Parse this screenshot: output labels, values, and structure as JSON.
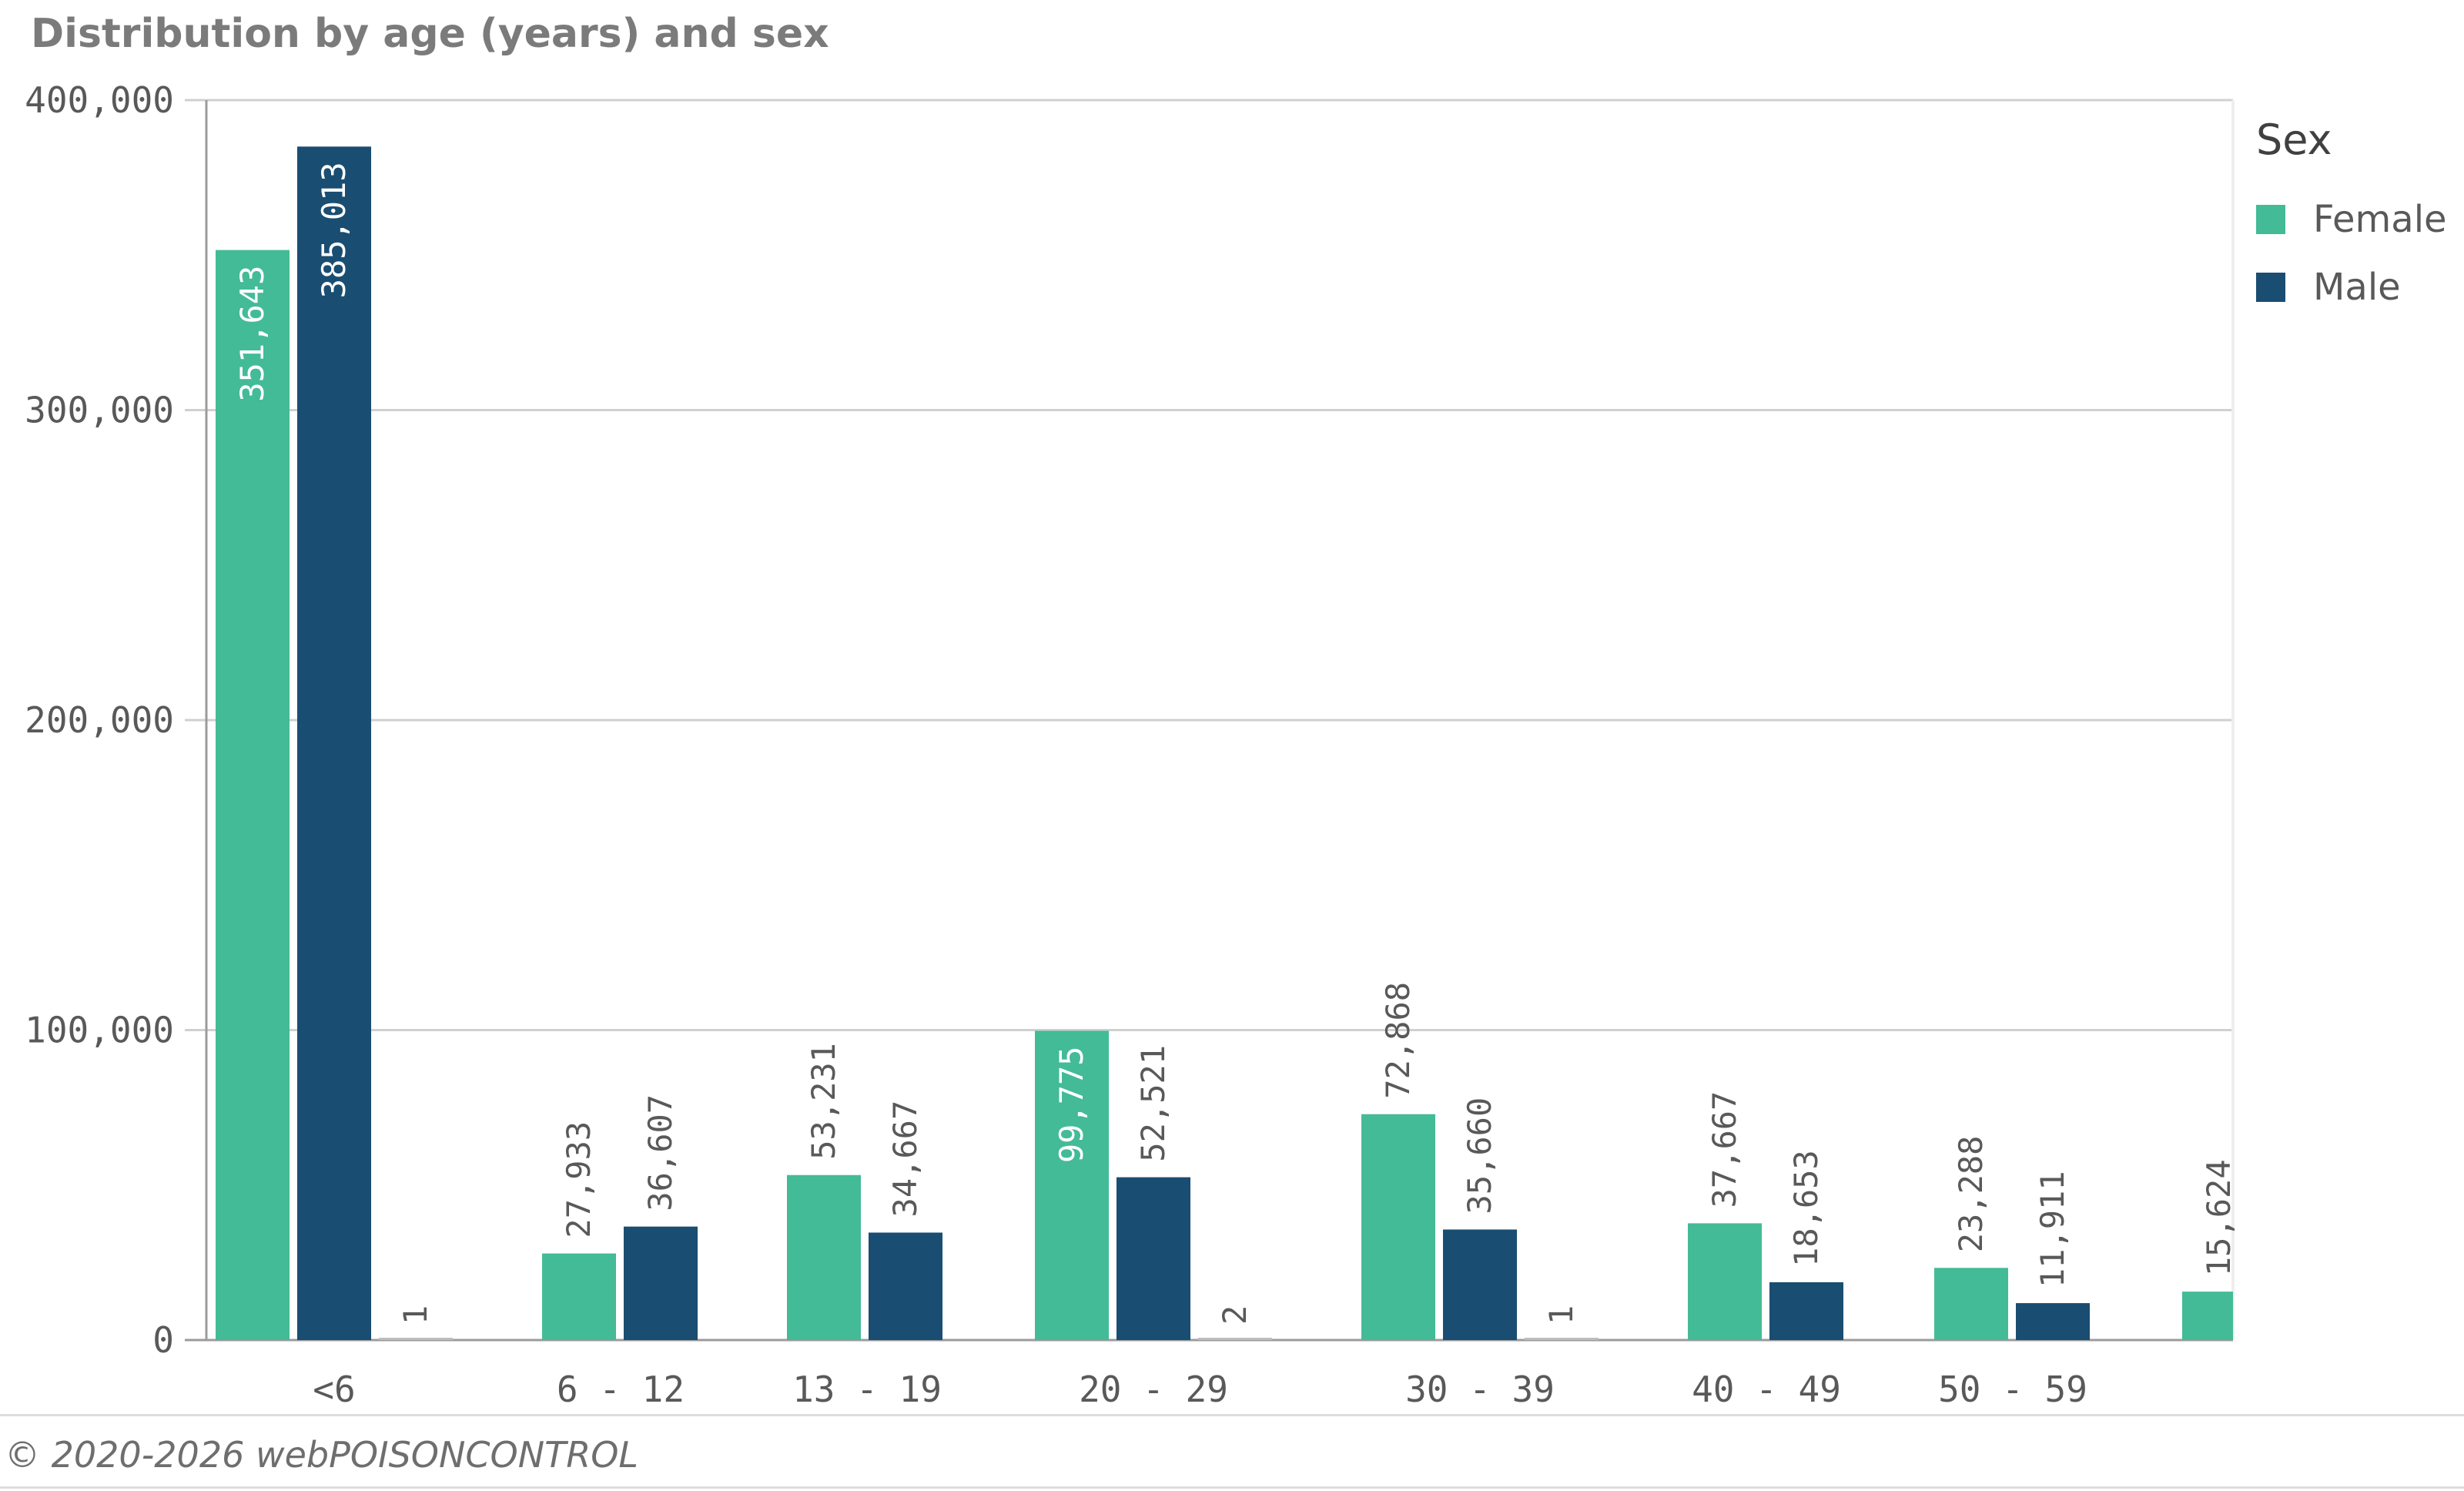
{
  "chart_data": {
    "type": "bar",
    "title": "Distribution by age (years) and sex",
    "xlabel": "",
    "ylabel": "",
    "ylim": [
      0,
      400000
    ],
    "yticks": [
      "0",
      "100,000",
      "200,000",
      "300,000",
      "400,000"
    ],
    "categories": [
      "<6",
      "6 - 12",
      "13 - 19",
      "20 - 29",
      "30 - 39",
      "40 - 49",
      "50 - 59",
      ""
    ],
    "legend_title": "Sex",
    "legend_position": "right",
    "grid": true,
    "series": [
      {
        "name": "Female",
        "color": "#43bb96",
        "values": [
          351643,
          27933,
          53231,
          99775,
          72868,
          37667,
          23288,
          15624
        ],
        "labels": [
          "351,643",
          "27,933",
          "53,231",
          "99,775",
          "72,868",
          "37,667",
          "23,288",
          "15,624"
        ]
      },
      {
        "name": "Male",
        "color": "#1a4d72",
        "values": [
          385013,
          36607,
          34667,
          52521,
          35660,
          18653,
          11911,
          null
        ],
        "labels": [
          "385,013",
          "36,607",
          "34,667",
          "52,521",
          "35,660",
          "18,653",
          "11,911",
          null
        ]
      },
      {
        "name": "",
        "color": "#9a9a9a",
        "values": [
          1,
          null,
          null,
          2,
          1,
          null,
          null,
          null
        ],
        "labels": [
          "1",
          null,
          null,
          "2",
          "1",
          null,
          null,
          null
        ]
      }
    ]
  },
  "footer": {
    "copyright": "© 2020-2026 webPOISONCONTROL"
  }
}
